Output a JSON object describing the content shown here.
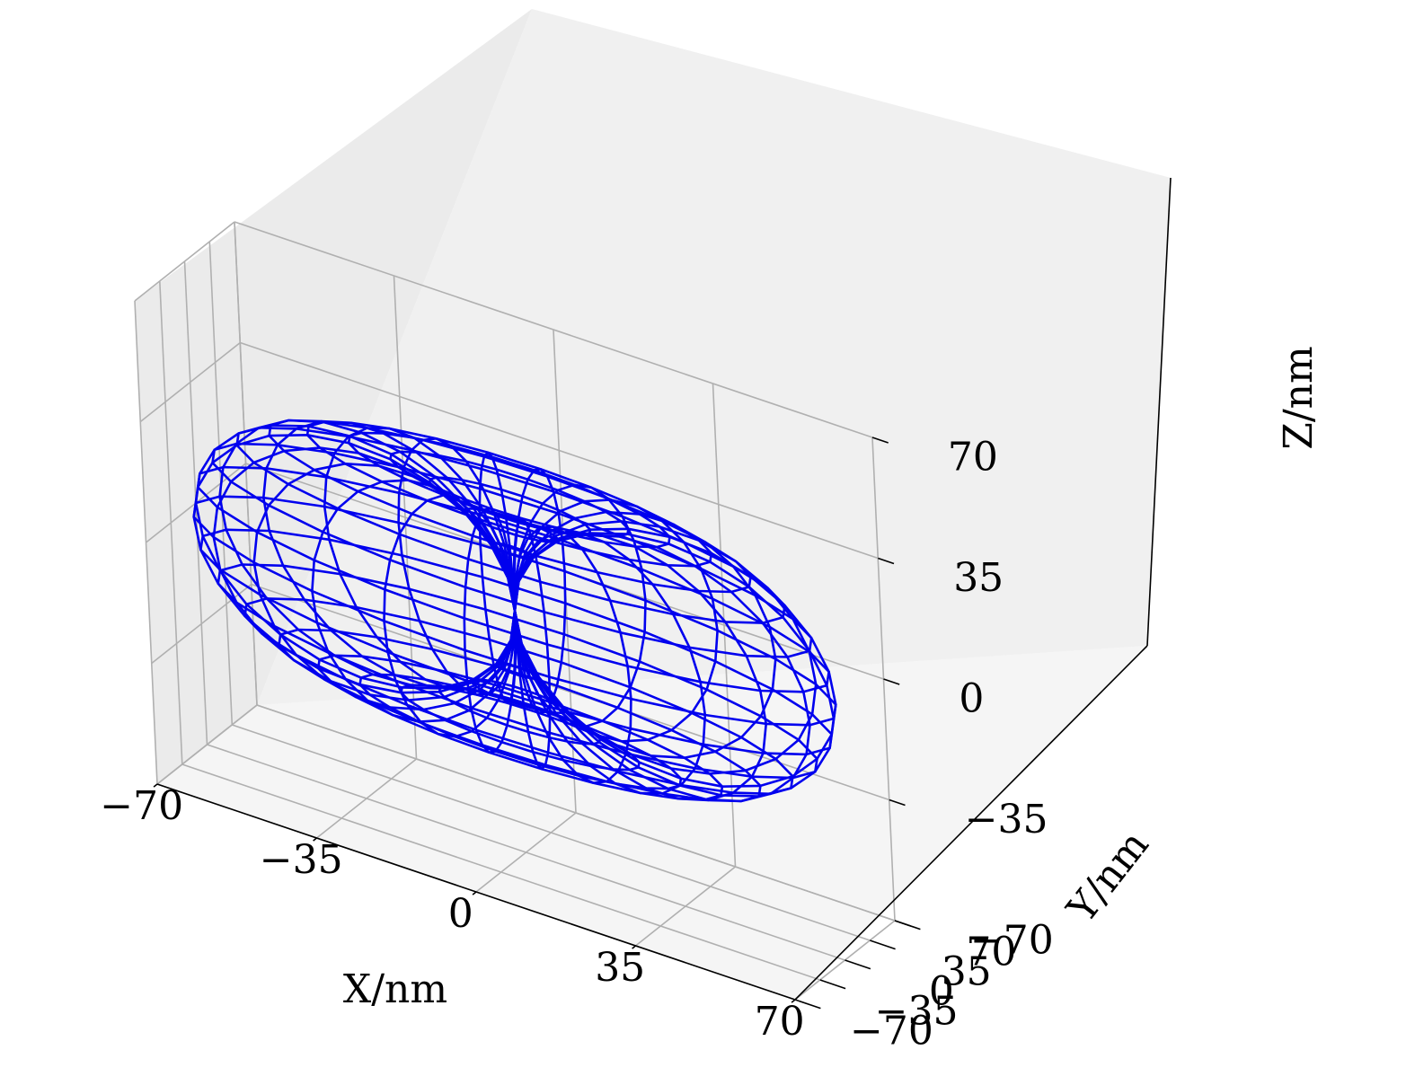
{
  "chart_data": {
    "type": "3d-wireframe",
    "title": "",
    "xlabel": "X/nm",
    "ylabel": "Y/nm",
    "zlabel": "Z/nm",
    "xlim": [
      -70,
      70
    ],
    "ylim": [
      -70,
      70
    ],
    "zlim": [
      -70,
      70
    ],
    "xticks": [
      -70,
      -35,
      0,
      35,
      70
    ],
    "yticks": [
      -70,
      -35,
      0,
      35,
      70
    ],
    "zticks": [
      -70,
      -35,
      0,
      35,
      70
    ],
    "xtick_labels": [
      "−70",
      "−35",
      "0",
      "35",
      "70"
    ],
    "ytick_labels": [
      "−70",
      "−35",
      "0",
      "35",
      "70"
    ],
    "ztick_labels": [
      "−70",
      "−35",
      "0",
      "35",
      "70"
    ],
    "grid": true,
    "series": [
      {
        "surface": "two-lobed dipole radiation pattern r = R|sin(theta)| about the z-axis",
        "max_radius": 70,
        "theta_samples": 24,
        "phi_samples": 24,
        "lobes_along": "x",
        "color": "#0000ee"
      }
    ],
    "pane_colors": {
      "back": "#f0f0f0",
      "side": "#ebebeb",
      "floor": "#f5f5f5"
    }
  }
}
